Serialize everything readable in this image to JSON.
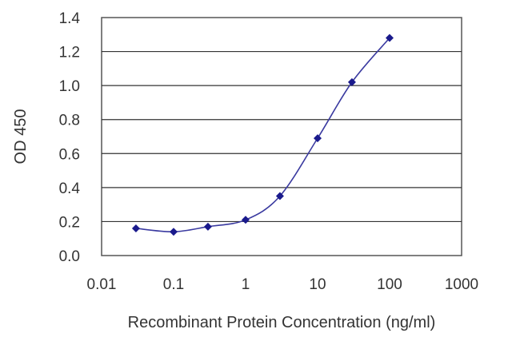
{
  "chart_data": {
    "type": "line",
    "title": "",
    "xlabel": "Recombinant Protein Concentration (ng/ml)",
    "ylabel": "OD 450",
    "x_scale": "log",
    "xlim": [
      0.01,
      1000
    ],
    "ylim": [
      0,
      1.4
    ],
    "x_ticks": [
      "0.01",
      "0.1",
      "1",
      "10",
      "100",
      "1000"
    ],
    "y_ticks": [
      "0.0",
      "0.2",
      "0.4",
      "0.6",
      "0.8",
      "1.0",
      "1.2",
      "1.4"
    ],
    "grid": "horizontal",
    "legend": "none",
    "series": [
      {
        "x": [
          0.03,
          0.1,
          0.3,
          1,
          3,
          10,
          30,
          100
        ],
        "y": [
          0.16,
          0.14,
          0.17,
          0.21,
          0.35,
          0.69,
          1.02,
          1.28
        ]
      }
    ],
    "colors": {
      "line": "#3a3aa0",
      "marker": "#1a1a8c",
      "grid": "#333333"
    }
  }
}
